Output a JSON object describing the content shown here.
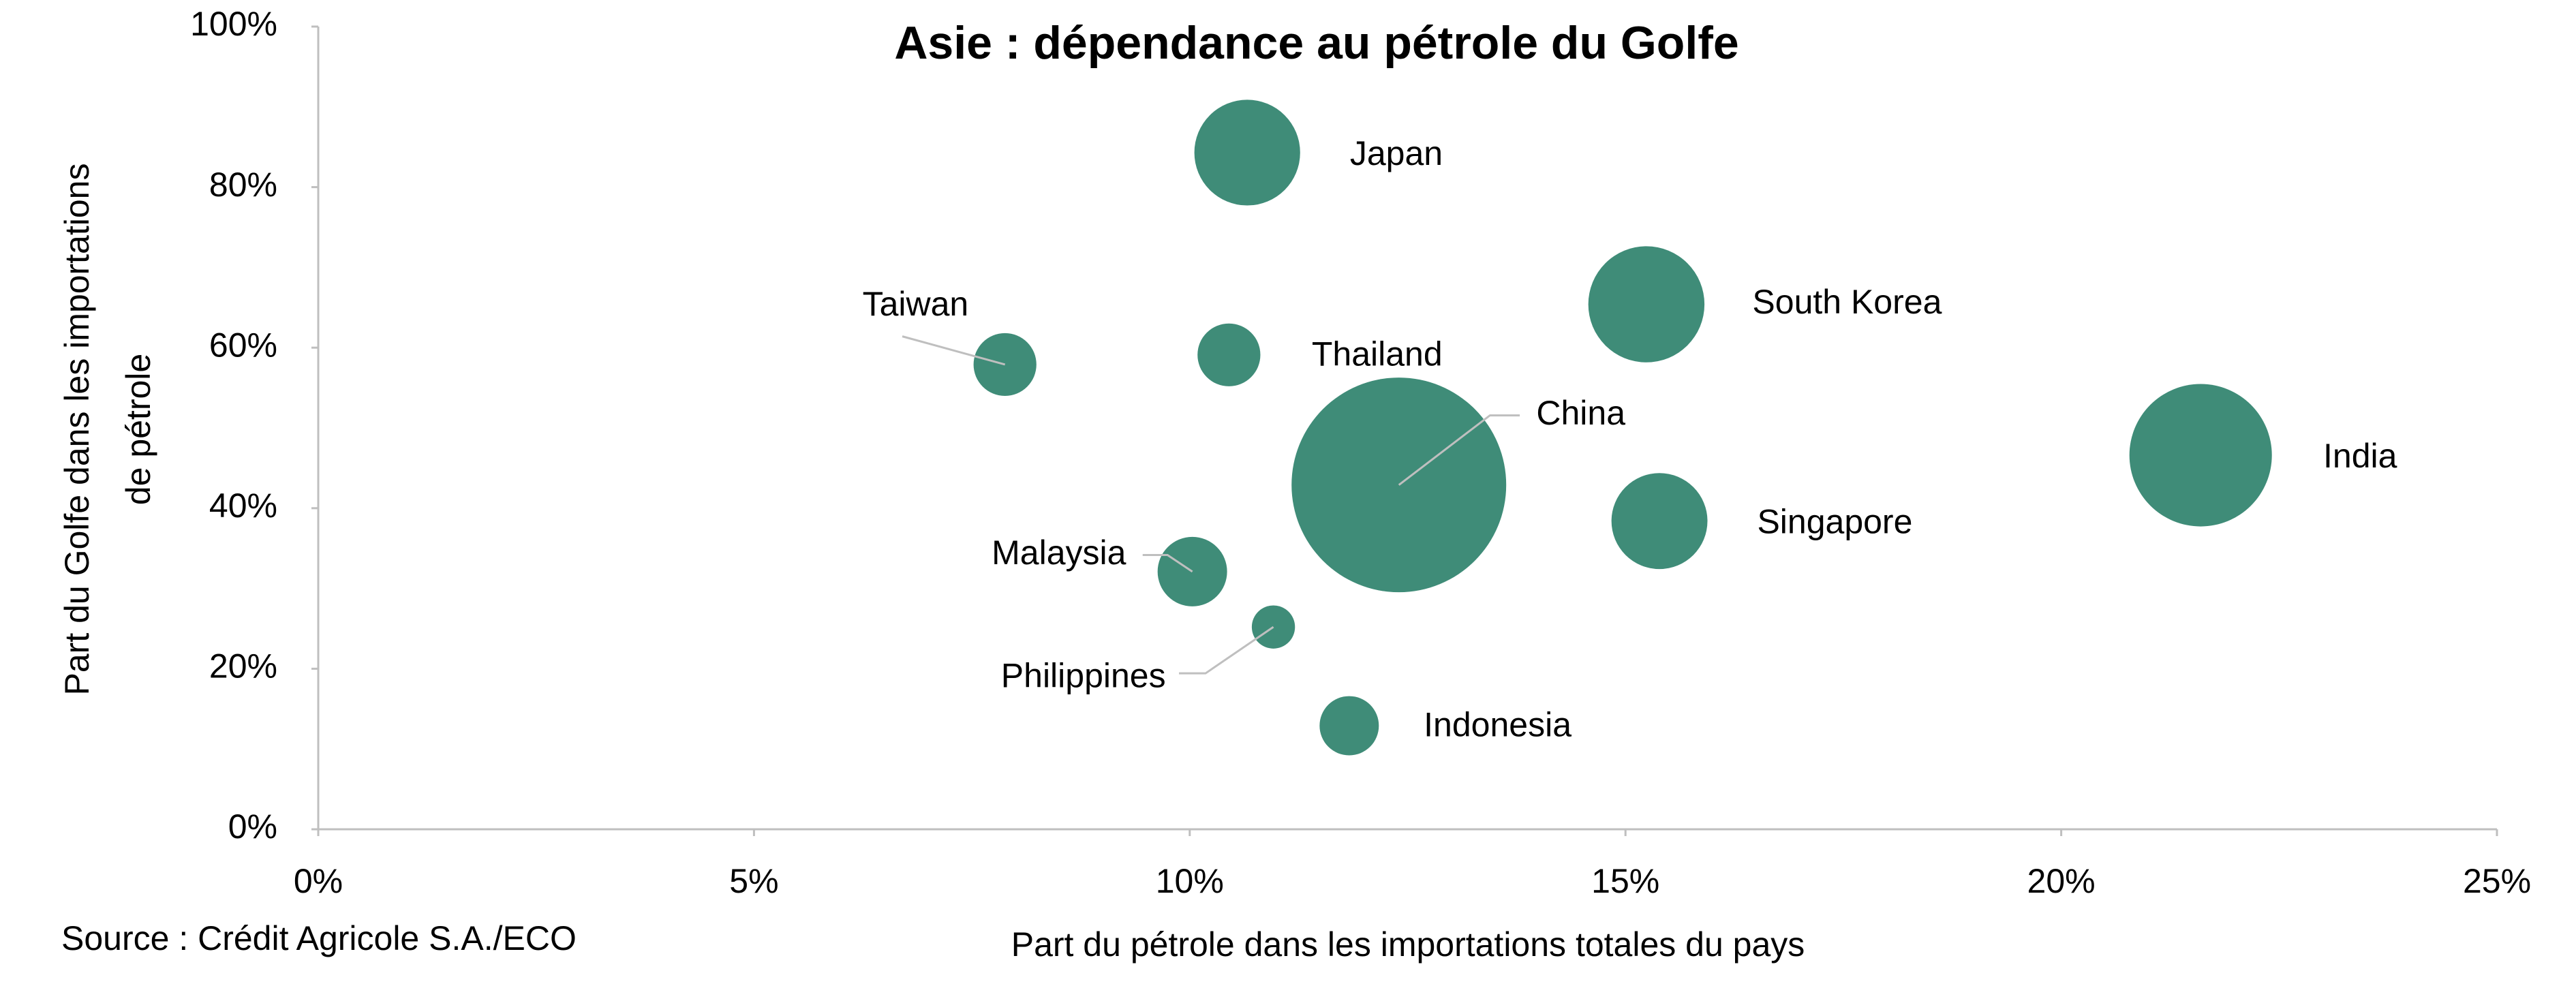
{
  "chart_data": {
    "type": "bubble",
    "title": "Asie : dépendance au pétrole du Golfe",
    "xlabel": "Part du pétrole dans les importations totales du pays",
    "ylabel": [
      "Part du Golfe dans les importations",
      "de pétrole"
    ],
    "source": "Source : Crédit Agricole S.A./ECO",
    "color": "#3f8c78",
    "xlim": [
      0,
      25
    ],
    "xticks": [
      {
        "value": 0,
        "label": "0%"
      },
      {
        "value": 5,
        "label": "5%"
      },
      {
        "value": 10,
        "label": "10%"
      },
      {
        "value": 15,
        "label": "15%"
      },
      {
        "value": 20,
        "label": "20%"
      },
      {
        "value": 25,
        "label": "25%"
      }
    ],
    "ylim": [
      0,
      100
    ],
    "yticks": [
      {
        "value": 0,
        "label": "0%"
      },
      {
        "value": 20,
        "label": "20%"
      },
      {
        "value": 40,
        "label": "40%"
      },
      {
        "value": 60,
        "label": "60%"
      },
      {
        "value": 80,
        "label": "80%"
      },
      {
        "value": 100,
        "label": "100%"
      }
    ],
    "points": [
      {
        "name": "Japan",
        "x": 10.66,
        "y": 84.3,
        "size": 10.2
      },
      {
        "name": "South Korea",
        "x": 15.24,
        "y": 65.4,
        "size": 12.3
      },
      {
        "name": "Taiwan",
        "x": 7.88,
        "y": 57.9,
        "size": 3.6
      },
      {
        "name": "Thailand",
        "x": 10.45,
        "y": 59.1,
        "size": 3.6
      },
      {
        "name": "China",
        "x": 12.4,
        "y": 42.9,
        "size": 42
      },
      {
        "name": "India",
        "x": 21.6,
        "y": 46.6,
        "size": 18.5
      },
      {
        "name": "Singapore",
        "x": 15.39,
        "y": 38.4,
        "size": 8.4
      },
      {
        "name": "Malaysia",
        "x": 10.03,
        "y": 32.1,
        "size": 4.4
      },
      {
        "name": "Philippines",
        "x": 10.96,
        "y": 25.2,
        "size": 1.7
      },
      {
        "name": "Indonesia",
        "x": 11.83,
        "y": 12.9,
        "size": 3.2
      }
    ]
  }
}
